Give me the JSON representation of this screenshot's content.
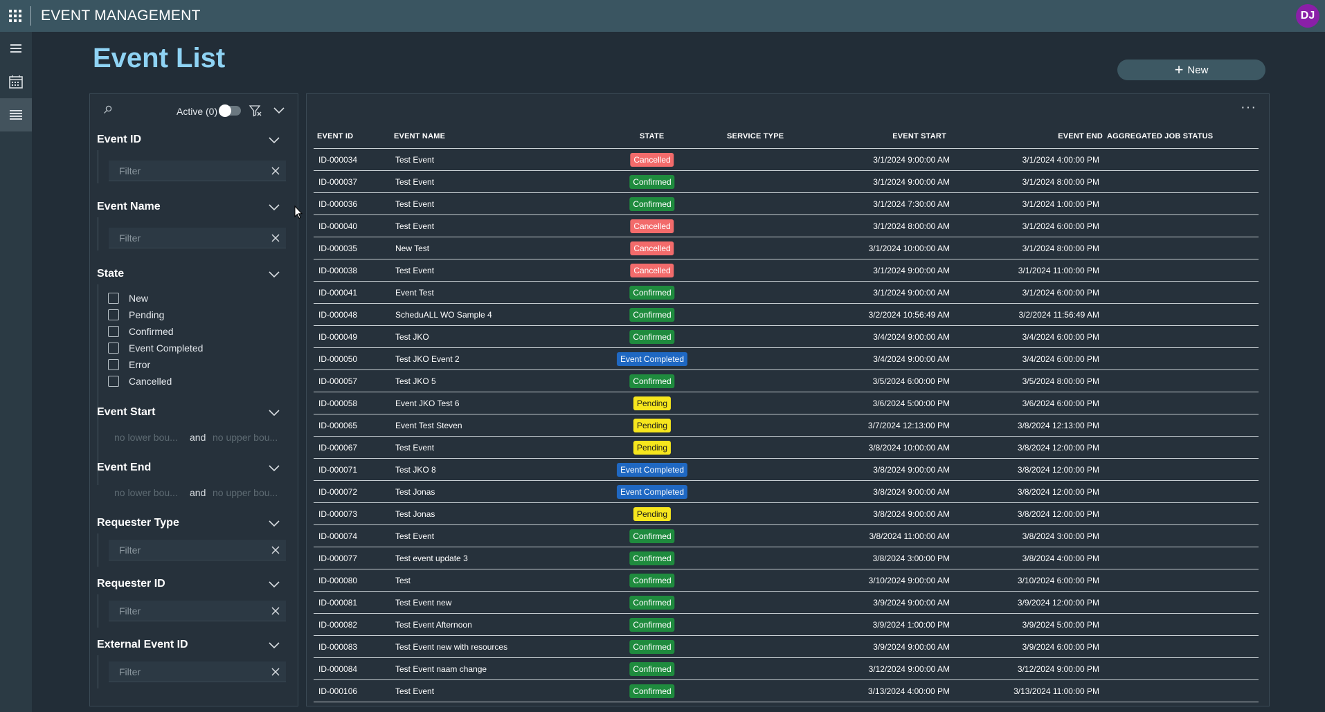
{
  "header": {
    "app_title": "EVENT MANAGEMENT",
    "avatar_initials": "DJ"
  },
  "page": {
    "title": "Event List",
    "new_button_label": "New"
  },
  "filters": {
    "active_label": "Active (0)",
    "filter_placeholder": "Filter",
    "lower_placeholder": "no lower bou...",
    "upper_placeholder": "no upper bou...",
    "and_label": "and",
    "event_id": "Event ID",
    "event_name": "Event Name",
    "state": "State",
    "state_options": [
      "New",
      "Pending",
      "Confirmed",
      "Event Completed",
      "Error",
      "Cancelled"
    ],
    "event_start": "Event Start",
    "event_end": "Event End",
    "requester_type": "Requester Type",
    "requester_id": "Requester ID",
    "external_event_id": "External Event ID"
  },
  "grid": {
    "more_label": "···",
    "columns": {
      "event_id": "EVENT ID",
      "event_name": "EVENT NAME",
      "state": "STATE",
      "service_type": "SERVICE TYPE",
      "event_start": "EVENT START",
      "event_end": "EVENT END",
      "aggregated_job_status": "AGGREGATED JOB STATUS"
    },
    "rows": [
      {
        "id": "ID-000034",
        "name": "Test Event",
        "state": "Cancelled",
        "start": "3/1/2024 9:00:00 AM",
        "end": "3/1/2024 4:00:00 PM"
      },
      {
        "id": "ID-000037",
        "name": "Test Event",
        "state": "Confirmed",
        "start": "3/1/2024 9:00:00 AM",
        "end": "3/1/2024 8:00:00 PM"
      },
      {
        "id": "ID-000036",
        "name": "Test Event",
        "state": "Confirmed",
        "start": "3/1/2024 7:30:00 AM",
        "end": "3/1/2024 1:00:00 PM"
      },
      {
        "id": "ID-000040",
        "name": "Test Event",
        "state": "Cancelled",
        "start": "3/1/2024 8:00:00 AM",
        "end": "3/1/2024 6:00:00 PM"
      },
      {
        "id": "ID-000035",
        "name": "New Test",
        "state": "Cancelled",
        "start": "3/1/2024 10:00:00 AM",
        "end": "3/1/2024 8:00:00 PM"
      },
      {
        "id": "ID-000038",
        "name": "Test Event",
        "state": "Cancelled",
        "start": "3/1/2024 9:00:00 AM",
        "end": "3/1/2024 11:00:00 PM"
      },
      {
        "id": "ID-000041",
        "name": "Event Test",
        "state": "Confirmed",
        "start": "3/1/2024 9:00:00 AM",
        "end": "3/1/2024 6:00:00 PM"
      },
      {
        "id": "ID-000048",
        "name": "ScheduALL WO Sample 4",
        "state": "Confirmed",
        "start": "3/2/2024 10:56:49 AM",
        "end": "3/2/2024 11:56:49 AM"
      },
      {
        "id": "ID-000049",
        "name": "Test JKO",
        "state": "Confirmed",
        "start": "3/4/2024 9:00:00 AM",
        "end": "3/4/2024 6:00:00 PM"
      },
      {
        "id": "ID-000050",
        "name": "Test JKO Event 2",
        "state": "Event Completed",
        "start": "3/4/2024 9:00:00 AM",
        "end": "3/4/2024 6:00:00 PM"
      },
      {
        "id": "ID-000057",
        "name": "Test JKO 5",
        "state": "Confirmed",
        "start": "3/5/2024 6:00:00 PM",
        "end": "3/5/2024 8:00:00 PM"
      },
      {
        "id": "ID-000058",
        "name": "Event JKO Test 6",
        "state": "Pending",
        "start": "3/6/2024 5:00:00 PM",
        "end": "3/6/2024 6:00:00 PM"
      },
      {
        "id": "ID-000065",
        "name": "Event Test Steven",
        "state": "Pending",
        "start": "3/7/2024 12:13:00 PM",
        "end": "3/8/2024 12:13:00 PM"
      },
      {
        "id": "ID-000067",
        "name": "Test Event",
        "state": "Pending",
        "start": "3/8/2024 10:00:00 AM",
        "end": "3/8/2024 12:00:00 PM"
      },
      {
        "id": "ID-000071",
        "name": "Test JKO 8",
        "state": "Event Completed",
        "start": "3/8/2024 9:00:00 AM",
        "end": "3/8/2024 12:00:00 PM"
      },
      {
        "id": "ID-000072",
        "name": "Test Jonas",
        "state": "Event Completed",
        "start": "3/8/2024 9:00:00 AM",
        "end": "3/8/2024 12:00:00 PM"
      },
      {
        "id": "ID-000073",
        "name": "Test Jonas",
        "state": "Pending",
        "start": "3/8/2024 9:00:00 AM",
        "end": "3/8/2024 12:00:00 PM"
      },
      {
        "id": "ID-000074",
        "name": "Test Event",
        "state": "Confirmed",
        "start": "3/8/2024 11:00:00 AM",
        "end": "3/8/2024 3:00:00 PM"
      },
      {
        "id": "ID-000077",
        "name": "Test event update 3",
        "state": "Confirmed",
        "start": "3/8/2024 3:00:00 PM",
        "end": "3/8/2024 4:00:00 PM"
      },
      {
        "id": "ID-000080",
        "name": "Test",
        "state": "Confirmed",
        "start": "3/10/2024 9:00:00 AM",
        "end": "3/10/2024 6:00:00 PM"
      },
      {
        "id": "ID-000081",
        "name": "Test Event new",
        "state": "Confirmed",
        "start": "3/9/2024 9:00:00 AM",
        "end": "3/9/2024 12:00:00 PM"
      },
      {
        "id": "ID-000082",
        "name": "Test Event Afternoon",
        "state": "Confirmed",
        "start": "3/9/2024 1:00:00 PM",
        "end": "3/9/2024 5:00:00 PM"
      },
      {
        "id": "ID-000083",
        "name": "Test Event new with resources",
        "state": "Confirmed",
        "start": "3/9/2024 9:00:00 AM",
        "end": "3/9/2024 6:00:00 PM"
      },
      {
        "id": "ID-000084",
        "name": "Test Event naam change",
        "state": "Confirmed",
        "start": "3/12/2024 9:00:00 AM",
        "end": "3/12/2024 9:00:00 PM"
      },
      {
        "id": "ID-000106",
        "name": "Test Event",
        "state": "Confirmed",
        "start": "3/13/2024 4:00:00 PM",
        "end": "3/13/2024 11:00:00 PM"
      }
    ]
  },
  "colors": {
    "topbar": "#3a5561",
    "background": "#222d37",
    "title_accent": "#8fd3f4",
    "cancelled": "#f26b6b",
    "confirmed": "#1f8b3e",
    "pending": "#f6e61d",
    "event_completed": "#1f68c2"
  }
}
